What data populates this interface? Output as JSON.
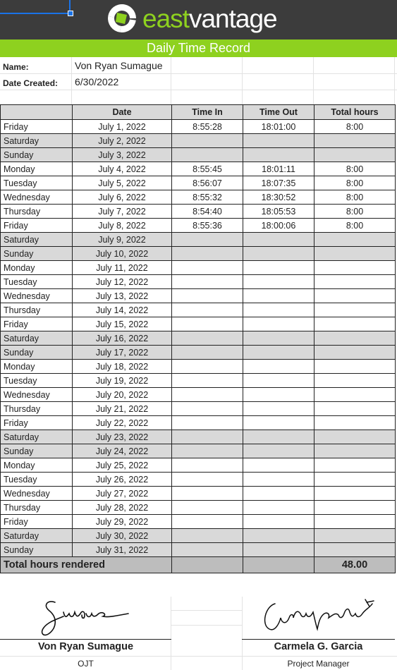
{
  "brand": {
    "logo_east": "east",
    "logo_vantage": "vantage",
    "accent": "#8ed11f",
    "header_bg": "#3c3c3c"
  },
  "title": "Daily Time Record",
  "info": {
    "name_label": "Name:",
    "name_value": "Von Ryan Sumague",
    "date_label": "Date Created:",
    "date_value": "6/30/2022"
  },
  "table": {
    "headers": [
      "",
      "Date",
      "Time In",
      "Time Out",
      "Total hours"
    ],
    "rows": [
      {
        "day": "Friday",
        "date": "July 1, 2022",
        "in": "8:55:28",
        "out": "18:01:00",
        "hours": "8:00",
        "weekend": false
      },
      {
        "day": "Saturday",
        "date": "July 2, 2022",
        "in": "",
        "out": "",
        "hours": "",
        "weekend": true
      },
      {
        "day": "Sunday",
        "date": "July 3, 2022",
        "in": "",
        "out": "",
        "hours": "",
        "weekend": true
      },
      {
        "day": "Monday",
        "date": "July 4, 2022",
        "in": "8:55:45",
        "out": "18:01:11",
        "hours": "8:00",
        "weekend": false
      },
      {
        "day": "Tuesday",
        "date": "July 5, 2022",
        "in": "8:56:07",
        "out": "18:07:35",
        "hours": "8:00",
        "weekend": false
      },
      {
        "day": "Wednesday",
        "date": "July 6, 2022",
        "in": "8:55:32",
        "out": "18:30:52",
        "hours": "8:00",
        "weekend": false
      },
      {
        "day": "Thursday",
        "date": "July 7, 2022",
        "in": "8:54:40",
        "out": "18:05:53",
        "hours": "8:00",
        "weekend": false
      },
      {
        "day": "Friday",
        "date": "July 8, 2022",
        "in": "8:55:36",
        "out": "18:00:06",
        "hours": "8:00",
        "weekend": false
      },
      {
        "day": "Saturday",
        "date": "July 9, 2022",
        "in": "",
        "out": "",
        "hours": "",
        "weekend": true
      },
      {
        "day": "Sunday",
        "date": "July 10, 2022",
        "in": "",
        "out": "",
        "hours": "",
        "weekend": true
      },
      {
        "day": "Monday",
        "date": "July 11, 2022",
        "in": "",
        "out": "",
        "hours": "",
        "weekend": false
      },
      {
        "day": "Tuesday",
        "date": "July 12, 2022",
        "in": "",
        "out": "",
        "hours": "",
        "weekend": false
      },
      {
        "day": "Wednesday",
        "date": "July 13, 2022",
        "in": "",
        "out": "",
        "hours": "",
        "weekend": false
      },
      {
        "day": "Thursday",
        "date": "July 14, 2022",
        "in": "",
        "out": "",
        "hours": "",
        "weekend": false
      },
      {
        "day": "Friday",
        "date": "July 15, 2022",
        "in": "",
        "out": "",
        "hours": "",
        "weekend": false
      },
      {
        "day": "Saturday",
        "date": "July 16, 2022",
        "in": "",
        "out": "",
        "hours": "",
        "weekend": true
      },
      {
        "day": "Sunday",
        "date": "July 17, 2022",
        "in": "",
        "out": "",
        "hours": "",
        "weekend": true
      },
      {
        "day": "Monday",
        "date": "July 18, 2022",
        "in": "",
        "out": "",
        "hours": "",
        "weekend": false
      },
      {
        "day": "Tuesday",
        "date": "July 19, 2022",
        "in": "",
        "out": "",
        "hours": "",
        "weekend": false
      },
      {
        "day": "Wednesday",
        "date": "July 20, 2022",
        "in": "",
        "out": "",
        "hours": "",
        "weekend": false
      },
      {
        "day": "Thursday",
        "date": "July 21, 2022",
        "in": "",
        "out": "",
        "hours": "",
        "weekend": false
      },
      {
        "day": "Friday",
        "date": "July 22, 2022",
        "in": "",
        "out": "",
        "hours": "",
        "weekend": false
      },
      {
        "day": "Saturday",
        "date": "July 23, 2022",
        "in": "",
        "out": "",
        "hours": "",
        "weekend": true
      },
      {
        "day": "Sunday",
        "date": "July 24, 2022",
        "in": "",
        "out": "",
        "hours": "",
        "weekend": true
      },
      {
        "day": "Monday",
        "date": "July 25, 2022",
        "in": "",
        "out": "",
        "hours": "",
        "weekend": false
      },
      {
        "day": "Tuesday",
        "date": "July 26, 2022",
        "in": "",
        "out": "",
        "hours": "",
        "weekend": false
      },
      {
        "day": "Wednesday",
        "date": "July 27, 2022",
        "in": "",
        "out": "",
        "hours": "",
        "weekend": false
      },
      {
        "day": "Thursday",
        "date": "July 28, 2022",
        "in": "",
        "out": "",
        "hours": "",
        "weekend": false
      },
      {
        "day": "Friday",
        "date": "July 29, 2022",
        "in": "",
        "out": "",
        "hours": "",
        "weekend": false
      },
      {
        "day": "Saturday",
        "date": "July 30, 2022",
        "in": "",
        "out": "",
        "hours": "",
        "weekend": true
      },
      {
        "day": "Sunday",
        "date": "July 31, 2022",
        "in": "",
        "out": "",
        "hours": "",
        "weekend": true
      }
    ],
    "total_label": "Total hours rendered",
    "total_value": "48.00",
    "weekend_color": "#d9d9d9",
    "total_color": "#bdbdbd"
  },
  "signatures": {
    "left_name": "Von Ryan Sumague",
    "left_role": "OJT",
    "right_name": "Carmela G. Garcia",
    "right_role": "Project Manager"
  }
}
